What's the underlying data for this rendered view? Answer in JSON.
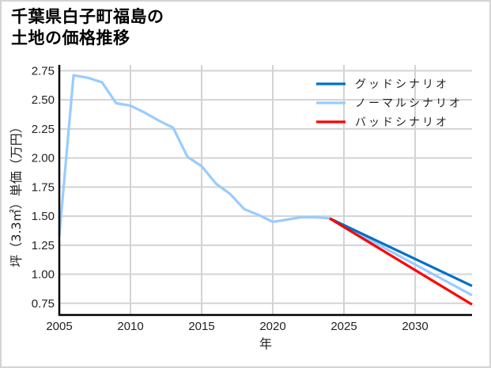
{
  "title": "千葉県白子町福島の\n土地の価格推移",
  "chart_data": {
    "type": "line",
    "title": "千葉県白子町福島の土地の価格推移",
    "xlabel": "年",
    "ylabel": "坪（3.3㎡）単価（万円）",
    "xlim": [
      2005,
      2034
    ],
    "ylim": [
      0.65,
      2.8
    ],
    "x_ticks": [
      "2005",
      "2010",
      "2015",
      "2020",
      "2025",
      "2030"
    ],
    "y_ticks": [
      "0.75",
      "1.00",
      "1.25",
      "1.50",
      "1.75",
      "2.00",
      "2.25",
      "2.50",
      "2.75"
    ],
    "grid": true,
    "legend_position": "upper right",
    "series": [
      {
        "name": "グッドシナリオ",
        "color": "#0070c9",
        "x": [
          2024,
          2034
        ],
        "values": [
          1.48,
          0.9
        ]
      },
      {
        "name": "ノーマルシナリオ",
        "color": "#99ccff",
        "x": [
          2005,
          2006,
          2007,
          2008,
          2009,
          2010,
          2011,
          2012,
          2013,
          2014,
          2015,
          2016,
          2017,
          2018,
          2019,
          2020,
          2021,
          2022,
          2023,
          2024,
          2034
        ],
        "values": [
          1.33,
          2.71,
          2.69,
          2.65,
          2.47,
          2.45,
          2.39,
          2.32,
          2.26,
          2.01,
          1.93,
          1.78,
          1.69,
          1.56,
          1.51,
          1.45,
          1.47,
          1.49,
          1.49,
          1.48,
          0.82
        ]
      },
      {
        "name": "バッドシナリオ",
        "color": "#ff0000",
        "x": [
          2024,
          2034
        ],
        "values": [
          1.48,
          0.74
        ]
      }
    ]
  }
}
